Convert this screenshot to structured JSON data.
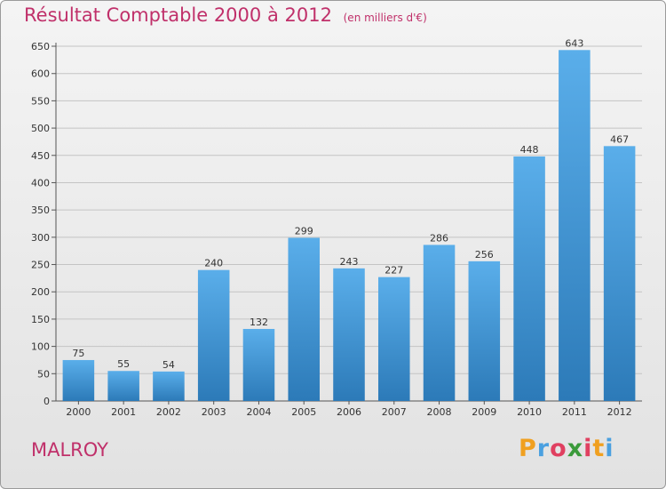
{
  "chart_data": {
    "type": "bar",
    "title": "Résultat Comptable 2000 à 2012",
    "subtitle": "(en milliers d'€)",
    "categories": [
      "2000",
      "2001",
      "2002",
      "2003",
      "2004",
      "2005",
      "2006",
      "2007",
      "2008",
      "2009",
      "2010",
      "2011",
      "2012"
    ],
    "values": [
      75,
      55,
      54,
      240,
      132,
      299,
      243,
      227,
      286,
      256,
      448,
      643,
      467
    ],
    "ylim": [
      0,
      650
    ],
    "yticks": [
      0,
      50,
      100,
      150,
      200,
      250,
      300,
      350,
      400,
      450,
      500,
      550,
      600,
      650
    ],
    "grid": true,
    "bar_color_top": "#5aaeea",
    "bar_color_bottom": "#2c7ab8"
  },
  "commune": "MALROY",
  "brand": {
    "letters": [
      "P",
      "r",
      "o",
      "x",
      "i",
      "t",
      "i"
    ],
    "colors": [
      "#f0a020",
      "#4aa0e0",
      "#e04060",
      "#3a9a3a",
      "#e04060",
      "#f0a020",
      "#4aa0e0"
    ]
  }
}
